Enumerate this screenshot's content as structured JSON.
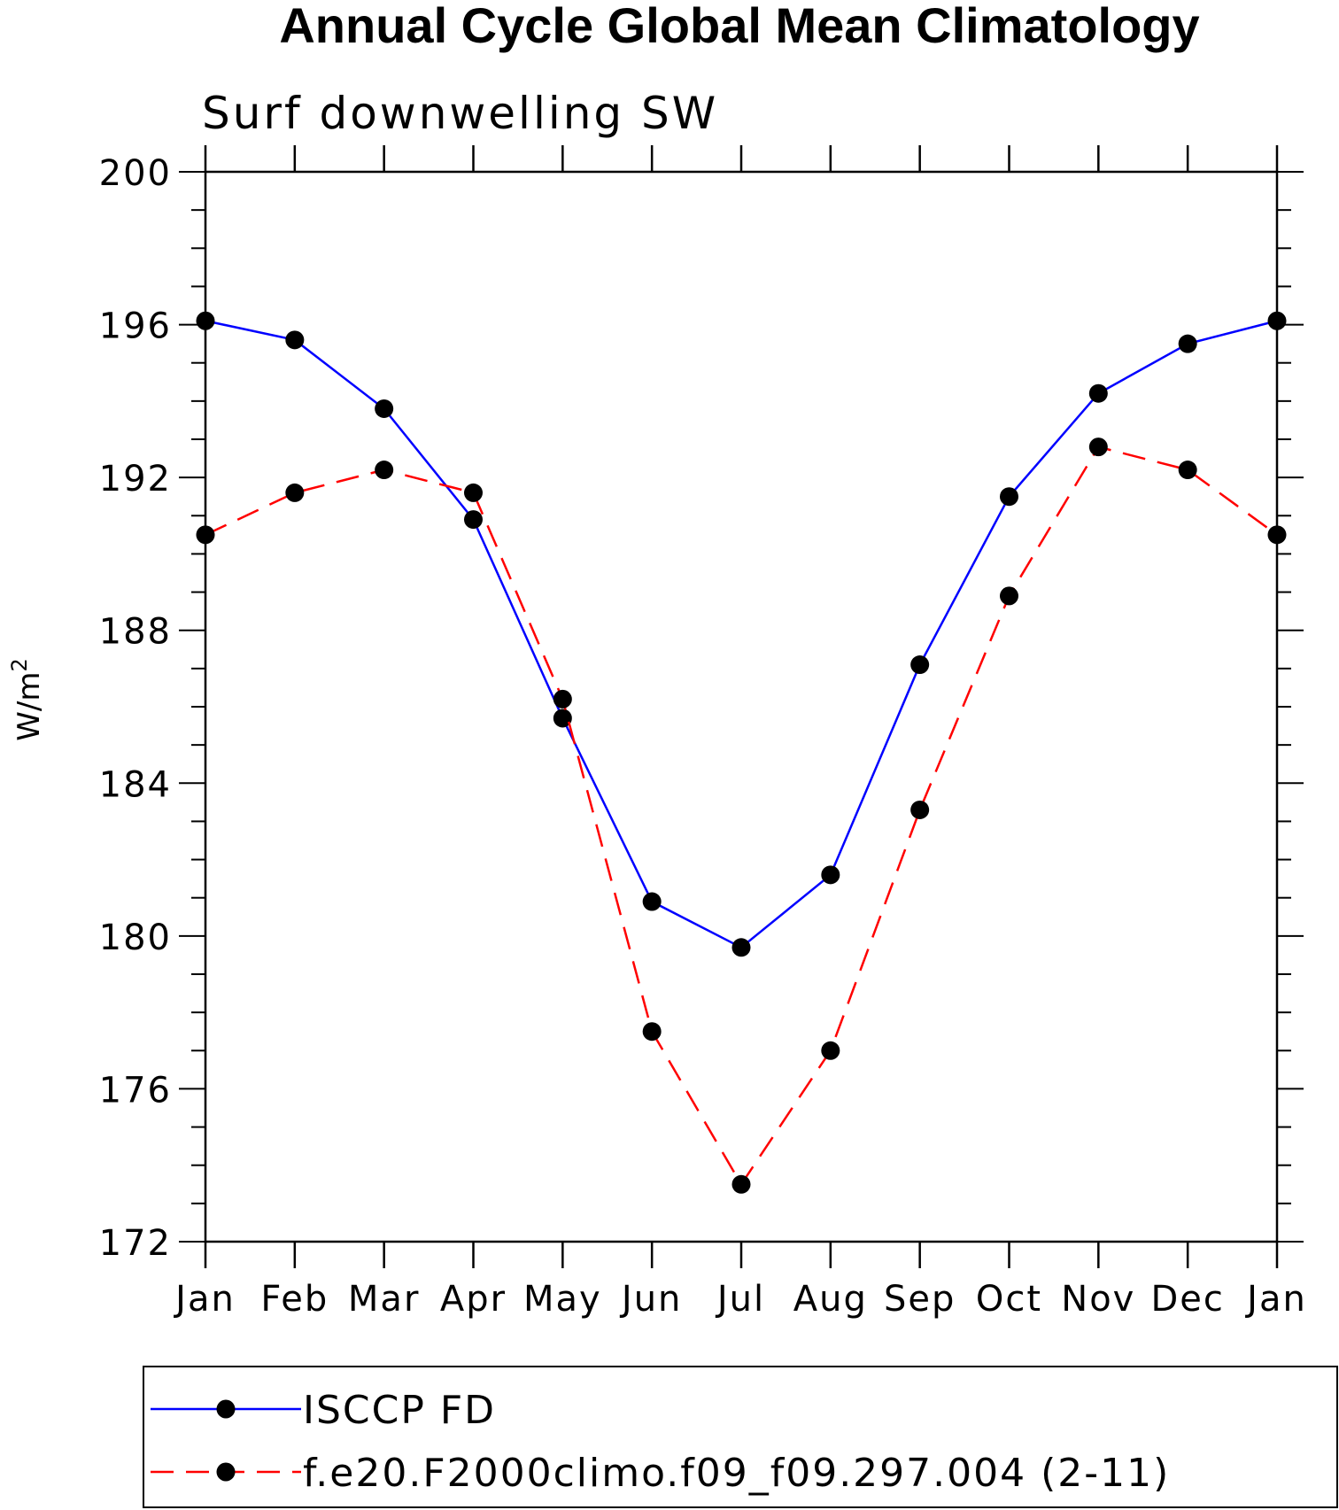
{
  "chart_data": {
    "type": "line",
    "title": "Annual Cycle Global Mean Climatology",
    "subtitle": "Surf downwelling SW",
    "ylabel_base": "W/m",
    "ylabel_sup": "2",
    "xlabel": "",
    "categories": [
      "Jan",
      "Feb",
      "Mar",
      "Apr",
      "May",
      "Jun",
      "Jul",
      "Aug",
      "Sep",
      "Oct",
      "Nov",
      "Dec",
      "Jan"
    ],
    "ylim": [
      172,
      200
    ],
    "yticks": [
      172,
      176,
      180,
      184,
      188,
      192,
      196,
      200
    ],
    "ytick_labels": [
      "172",
      "176",
      "180",
      "184",
      "188",
      "192",
      "196",
      "200"
    ],
    "y_minor_step": 1,
    "series": [
      {
        "name": "ISCCP FD",
        "color": "#0000ff",
        "dash": "solid",
        "values": [
          196.1,
          195.6,
          193.8,
          190.9,
          185.7,
          180.9,
          179.7,
          181.6,
          187.1,
          191.5,
          194.2,
          195.5,
          196.1
        ]
      },
      {
        "name": "f.e20.F2000climo.f09_f09.297.004 (2-11)",
        "color": "#ff0000",
        "dash": "dashed",
        "values": [
          190.5,
          191.6,
          192.2,
          191.6,
          186.2,
          177.5,
          173.5,
          177.0,
          183.3,
          188.9,
          192.8,
          192.2,
          190.5
        ]
      }
    ],
    "marker_color": "#000000",
    "legend_position": "bottom",
    "grid": false
  }
}
